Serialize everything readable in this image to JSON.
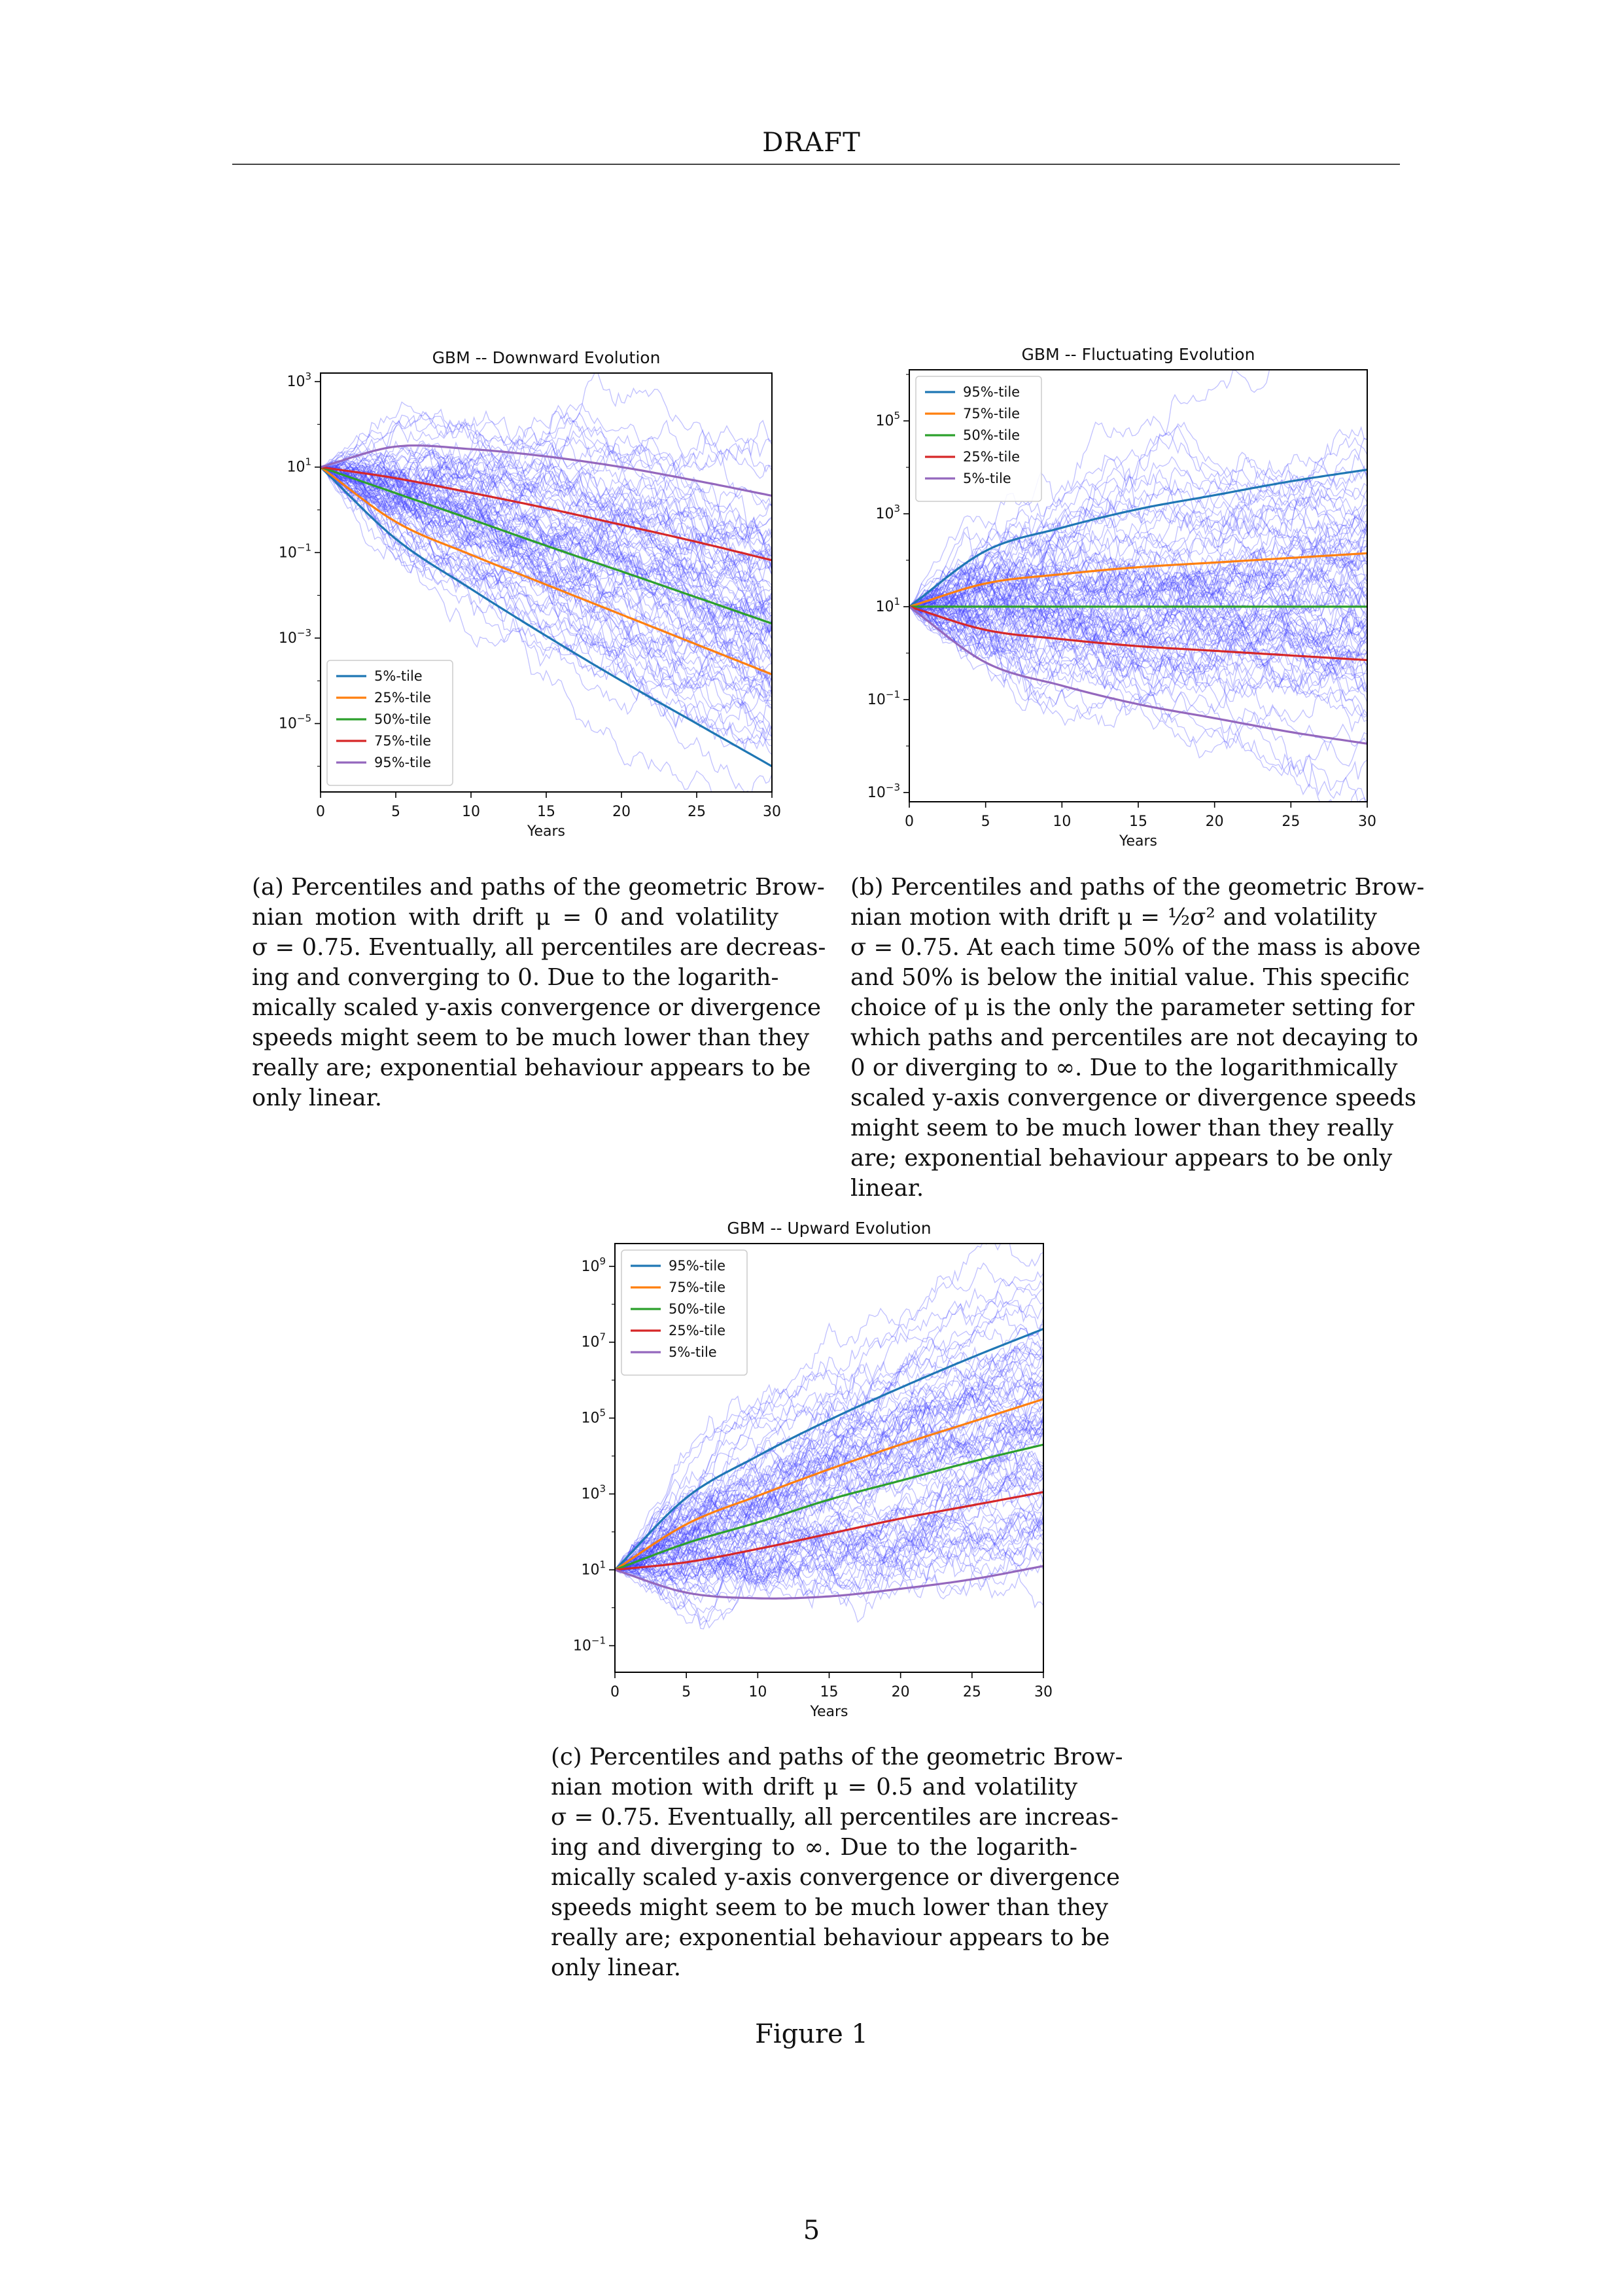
{
  "header": {
    "running_head": "DRAFT"
  },
  "page_number": "5",
  "figure_label": "Figure 1",
  "captions": {
    "a": [
      "(a) Percentiles and paths of the geometric Brow-",
      "nian motion with drift μ = 0 and volatility",
      "σ = 0.75. Eventually, all percentiles are decreas-",
      "ing and converging to 0. Due to the logarith-",
      "mically scaled y-axis convergence or divergence",
      "speeds might seem to be much lower than they",
      "really are; exponential behaviour appears to be",
      "only linear."
    ],
    "b": [
      "(b) Percentiles and paths of the geometric Brow-",
      "nian motion with drift μ = ½σ² and volatility",
      "σ = 0.75. At each time 50% of the mass is above",
      "and 50% is below the initial value. This specific",
      "choice of μ is the only the parameter setting for",
      "which paths and percentiles are not decaying to",
      "0 or diverging to ∞. Due to the logarithmically",
      "scaled y-axis convergence or divergence speeds",
      "might seem to be much lower than they really",
      "are; exponential behaviour appears to be only",
      "linear."
    ],
    "c": [
      "(c) Percentiles and paths of the geometric Brow-",
      "nian motion with drift μ = 0.5 and volatility",
      "σ = 0.75. Eventually, all percentiles are increas-",
      "ing and diverging to ∞. Due to the logarith-",
      "mically scaled y-axis convergence or divergence",
      "speeds might seem to be much lower than they",
      "really are; exponential behaviour appears to be",
      "only linear."
    ]
  },
  "chart_data": [
    {
      "id": "a",
      "type": "line",
      "title": "GBM -- Downward Evolution",
      "xlabel": "Years",
      "ylabel": "",
      "y_scale": "log",
      "xlim": [
        0,
        30
      ],
      "ylim_log10": [
        -6.6,
        3.2
      ],
      "x_ticks": [
        0,
        5,
        10,
        15,
        20,
        25,
        30
      ],
      "y_ticks": [
        {
          "exp": 3,
          "label": "10^3"
        },
        {
          "exp": 1,
          "label": "10^1"
        },
        {
          "exp": -1,
          "label": "10^-1"
        },
        {
          "exp": -3,
          "label": "10^-3"
        },
        {
          "exp": -5,
          "label": "10^-5"
        }
      ],
      "legend_position": "lower-left",
      "initial_value": 10,
      "mu": 0,
      "sigma": 0.75,
      "series": [
        {
          "name": "5%-tile",
          "color": "#1f77b4",
          "log10_at_x": [
            [
              0,
              1.0
            ],
            [
              5,
              -0.68
            ],
            [
              10,
              -1.85
            ],
            [
              15,
              -2.95
            ],
            [
              20,
              -4.0
            ],
            [
              25,
              -5.0
            ],
            [
              30,
              -6.0
            ]
          ]
        },
        {
          "name": "25%-tile",
          "color": "#ff7f0e",
          "log10_at_x": [
            [
              0,
              1.0
            ],
            [
              5,
              -0.28
            ],
            [
              10,
              -1.05
            ],
            [
              15,
              -1.75
            ],
            [
              20,
              -2.45
            ],
            [
              25,
              -3.15
            ],
            [
              30,
              -3.85
            ]
          ]
        },
        {
          "name": "50%-tile",
          "color": "#2ca02c",
          "log10_at_x": [
            [
              0,
              1.0
            ],
            [
              5,
              0.39
            ],
            [
              10,
              -0.22
            ],
            [
              15,
              -0.84
            ],
            [
              20,
              -1.44
            ],
            [
              25,
              -2.05
            ],
            [
              30,
              -2.66
            ]
          ]
        },
        {
          "name": "75%-tile",
          "color": "#d62728",
          "log10_at_x": [
            [
              0,
              1.0
            ],
            [
              5,
              0.74
            ],
            [
              10,
              0.4
            ],
            [
              15,
              0.04
            ],
            [
              20,
              -0.35
            ],
            [
              25,
              -0.75
            ],
            [
              30,
              -1.18
            ]
          ]
        },
        {
          "name": "95%-tile",
          "color": "#9467bd",
          "log10_at_x": [
            [
              0,
              1.0
            ],
            [
              5,
              1.48
            ],
            [
              10,
              1.42
            ],
            [
              15,
              1.25
            ],
            [
              20,
              1.0
            ],
            [
              25,
              0.68
            ],
            [
              30,
              0.33
            ]
          ]
        }
      ]
    },
    {
      "id": "b",
      "type": "line",
      "title": "GBM -- Fluctuating Evolution",
      "xlabel": "Years",
      "ylabel": "",
      "y_scale": "log",
      "xlim": [
        0,
        30
      ],
      "ylim_log10": [
        -3.2,
        6.1
      ],
      "x_ticks": [
        0,
        5,
        10,
        15,
        20,
        25,
        30
      ],
      "y_ticks": [
        {
          "exp": 5,
          "label": "10^5"
        },
        {
          "exp": 3,
          "label": "10^3"
        },
        {
          "exp": 1,
          "label": "10^1"
        },
        {
          "exp": -1,
          "label": "10^-1"
        },
        {
          "exp": -3,
          "label": "10^-3"
        }
      ],
      "legend_position": "upper-left",
      "initial_value": 10,
      "mu": "½σ²",
      "sigma": 0.75,
      "series": [
        {
          "name": "95%-tile",
          "color": "#1f77b4",
          "log10_at_x": [
            [
              0,
              1.0
            ],
            [
              5,
              2.2
            ],
            [
              10,
              2.7
            ],
            [
              15,
              3.1
            ],
            [
              20,
              3.4
            ],
            [
              25,
              3.7
            ],
            [
              30,
              3.95
            ]
          ]
        },
        {
          "name": "75%-tile",
          "color": "#ff7f0e",
          "log10_at_x": [
            [
              0,
              1.0
            ],
            [
              5,
              1.5
            ],
            [
              10,
              1.7
            ],
            [
              15,
              1.85
            ],
            [
              20,
              1.95
            ],
            [
              25,
              2.05
            ],
            [
              30,
              2.15
            ]
          ]
        },
        {
          "name": "50%-tile",
          "color": "#2ca02c",
          "log10_at_x": [
            [
              0,
              1.0
            ],
            [
              30,
              1.0
            ]
          ]
        },
        {
          "name": "25%-tile",
          "color": "#d62728",
          "log10_at_x": [
            [
              0,
              1.0
            ],
            [
              5,
              0.5
            ],
            [
              10,
              0.3
            ],
            [
              15,
              0.15
            ],
            [
              20,
              0.05
            ],
            [
              25,
              -0.05
            ],
            [
              30,
              -0.15
            ]
          ]
        },
        {
          "name": "5%-tile",
          "color": "#9467bd",
          "log10_at_x": [
            [
              0,
              1.0
            ],
            [
              5,
              -0.2
            ],
            [
              10,
              -0.7
            ],
            [
              15,
              -1.1
            ],
            [
              20,
              -1.4
            ],
            [
              25,
              -1.7
            ],
            [
              30,
              -1.95
            ]
          ]
        }
      ]
    },
    {
      "id": "c",
      "type": "line",
      "title": "GBM -- Upward Evolution",
      "xlabel": "Years",
      "ylabel": "",
      "y_scale": "log",
      "xlim": [
        0,
        30
      ],
      "ylim_log10": [
        -1.7,
        9.6
      ],
      "x_ticks": [
        0,
        5,
        10,
        15,
        20,
        25,
        30
      ],
      "y_ticks": [
        {
          "exp": 9,
          "label": "10^9"
        },
        {
          "exp": 7,
          "label": "10^7"
        },
        {
          "exp": 5,
          "label": "10^5"
        },
        {
          "exp": 3,
          "label": "10^3"
        },
        {
          "exp": 1,
          "label": "10^1"
        },
        {
          "exp": -1,
          "label": "10^-1"
        }
      ],
      "legend_position": "upper-left",
      "initial_value": 10,
      "mu": 0.5,
      "sigma": 0.75,
      "series": [
        {
          "name": "95%-tile",
          "color": "#1f77b4",
          "log10_at_x": [
            [
              0,
              1.0
            ],
            [
              5,
              2.9
            ],
            [
              10,
              4.0
            ],
            [
              15,
              4.95
            ],
            [
              20,
              5.8
            ],
            [
              25,
              6.6
            ],
            [
              30,
              7.35
            ]
          ]
        },
        {
          "name": "75%-tile",
          "color": "#ff7f0e",
          "log10_at_x": [
            [
              0,
              1.0
            ],
            [
              5,
              2.2
            ],
            [
              10,
              2.95
            ],
            [
              15,
              3.65
            ],
            [
              20,
              4.3
            ],
            [
              25,
              4.9
            ],
            [
              30,
              5.5
            ]
          ]
        },
        {
          "name": "50%-tile",
          "color": "#2ca02c",
          "log10_at_x": [
            [
              0,
              1.0
            ],
            [
              5,
              1.7
            ],
            [
              10,
              2.25
            ],
            [
              15,
              2.85
            ],
            [
              20,
              3.35
            ],
            [
              25,
              3.85
            ],
            [
              30,
              4.3
            ]
          ]
        },
        {
          "name": "25%-tile",
          "color": "#d62728",
          "log10_at_x": [
            [
              0,
              1.0
            ],
            [
              5,
              1.2
            ],
            [
              10,
              1.55
            ],
            [
              15,
              1.95
            ],
            [
              20,
              2.35
            ],
            [
              25,
              2.7
            ],
            [
              30,
              3.05
            ]
          ]
        },
        {
          "name": "5%-tile",
          "color": "#9467bd",
          "log10_at_x": [
            [
              0,
              1.0
            ],
            [
              5,
              0.4
            ],
            [
              10,
              0.25
            ],
            [
              15,
              0.3
            ],
            [
              20,
              0.5
            ],
            [
              25,
              0.75
            ],
            [
              30,
              1.1
            ]
          ]
        }
      ]
    }
  ]
}
